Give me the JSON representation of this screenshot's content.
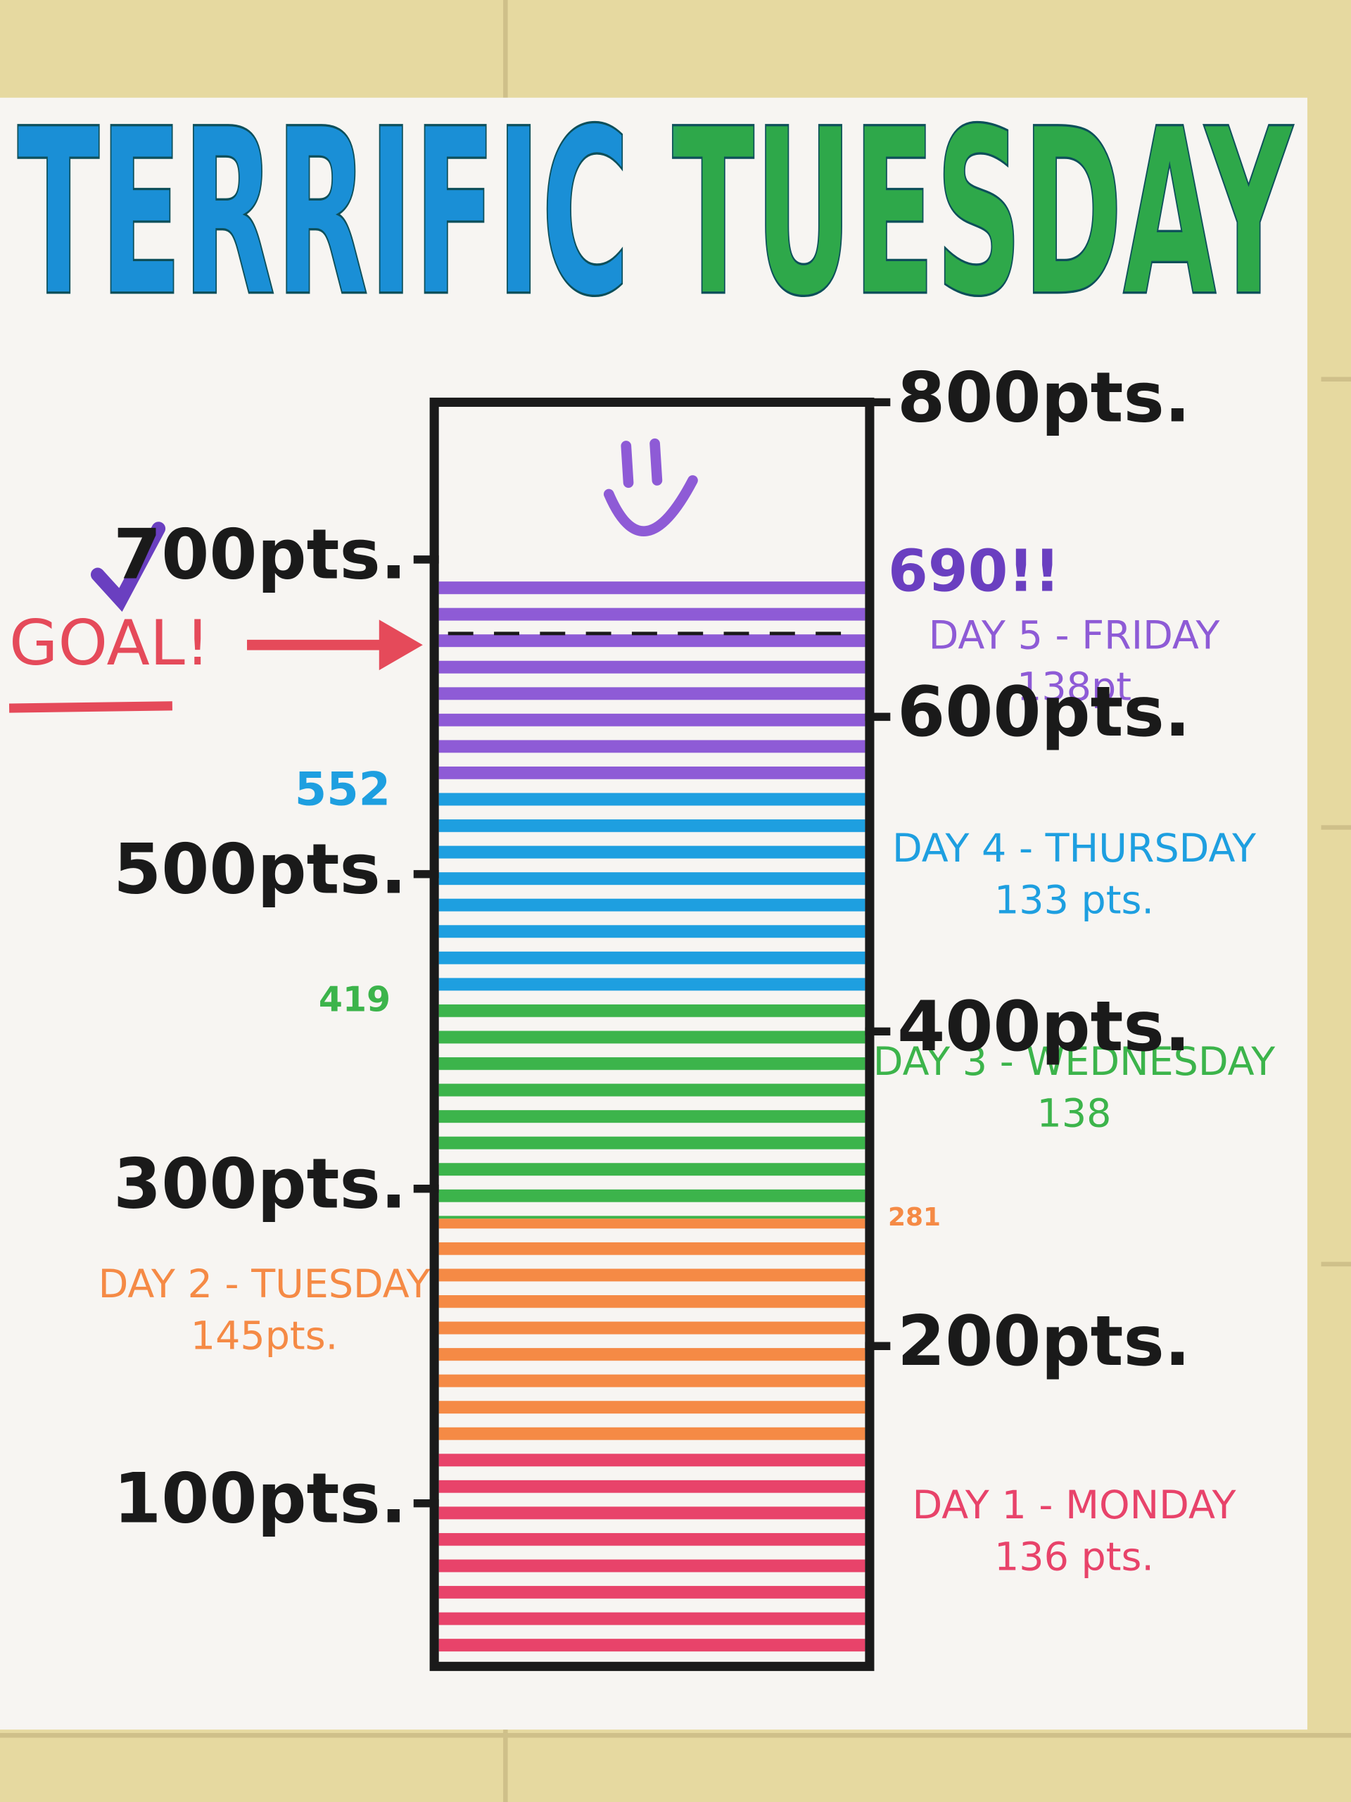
{
  "chart_data": {
    "type": "thermometer",
    "title": "TERRIFIC TUESDAY",
    "ylim": [
      0,
      800
    ],
    "yticks": [
      {
        "value": 100,
        "label": "100pts."
      },
      {
        "value": 200,
        "label": "200pts."
      },
      {
        "value": 300,
        "label": "300pts."
      },
      {
        "value": 400,
        "label": "400pts."
      },
      {
        "value": 500,
        "label": "500pts."
      },
      {
        "value": 600,
        "label": "600pts."
      },
      {
        "value": 700,
        "label": "700pts."
      },
      {
        "value": 800,
        "label": "800pts."
      }
    ],
    "series": [
      {
        "name": "DAY 1 - MONDAY",
        "color": "#e8436a",
        "values": [
          136
        ],
        "value_labels": [
          "136 pts."
        ]
      },
      {
        "name": "DAY 2 - TUESDAY",
        "color": "#f58a45",
        "values": [
          145
        ],
        "value_labels": [
          "145pts."
        ]
      },
      {
        "name": "DAY 3 - WEDNESDAY",
        "color": "#3cb44b",
        "values": [
          138
        ],
        "value_labels": [
          "138"
        ]
      },
      {
        "name": "DAY 4 - THURSDAY",
        "color": "#1e9fe0",
        "values": [
          133
        ],
        "value_labels": [
          "133 pts."
        ]
      },
      {
        "name": "DAY 5 - FRIDAY",
        "color": "#8e5bd6",
        "values": [
          138
        ],
        "value_labels": [
          "138pt"
        ]
      }
    ],
    "running_totals": [
      {
        "value": 281,
        "label": "281"
      },
      {
        "value": 419,
        "label": "419"
      },
      {
        "value": 552,
        "label": "552"
      },
      {
        "value": 690,
        "label": "690!!"
      }
    ],
    "goal": {
      "value": 653,
      "label": "GOAL!"
    }
  }
}
